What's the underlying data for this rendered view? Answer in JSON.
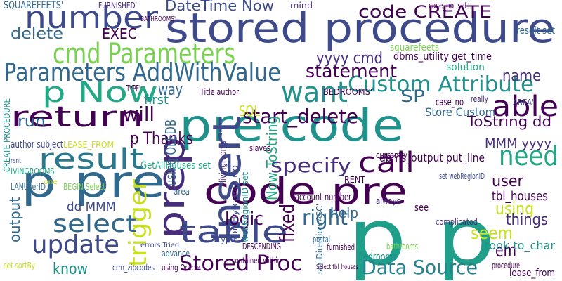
{
  "words": [
    "stored procedure",
    "p p",
    "pre code",
    "code pre",
    "p pre",
    "cmd Parameters",
    "Parameters AddWithValue",
    "number",
    "insert",
    "prep",
    "return",
    "result",
    "p Now",
    "want",
    "Custom Attribute",
    "able",
    "call",
    "need",
    "table",
    "trigger",
    "update",
    "select",
    "Stored Proc",
    "Data Source",
    "right",
    "logic",
    "start_delete",
    "specify",
    "statement",
    "code CREATE",
    "DateTime Now",
    "delete",
    "EXEC",
    "yyyy cmd",
    "name",
    "way",
    "SP",
    "SQL",
    "will",
    "first",
    "p Thanks",
    "Now ToString",
    "fixed",
    "ToString dd",
    "Store Custom",
    "MMM yyyy",
    "dd MMM",
    "user",
    "using",
    "seem",
    "help",
    "know",
    "output",
    "run",
    "GetAllHouses set",
    "things",
    "em",
    "took to_char",
    "tbl_houses",
    "bedrooms",
    "squarefeets",
    "solution",
    "dbms_utility get_time",
    "dbms_output put_line",
    "SQUAREFEETS'",
    "FURNISHED'",
    "Title author",
    "author subject",
    "LIVINGROOMS'",
    "LEASE_FROM'",
    "CREATE PROCEDURE",
    "LANUserID",
    "BEGIN Select",
    "case_no",
    "RENT",
    "account number",
    "set webRegionID",
    "DESCENDING",
    "crm_zipcodes",
    "using Oracle",
    "advance",
    "contained within",
    "complicated",
    "procedure",
    "lease_from",
    "mind",
    "case_no' set",
    "result set",
    "BATHROOMS'",
    "bathrooms",
    "always",
    "furnished",
    "postal",
    "type",
    "sortBy case_no",
    "webRegionID set",
    "livingrooms",
    "using OLEDB",
    "currently",
    "really",
    "sortDirection ASC'",
    "TYPE'",
    "BEDROOMS'",
    "AREA'",
    "slaves",
    "area",
    "one",
    "rent",
    "set sortBy",
    "Select tbl_houses",
    "errors Tried",
    "see"
  ]
}
